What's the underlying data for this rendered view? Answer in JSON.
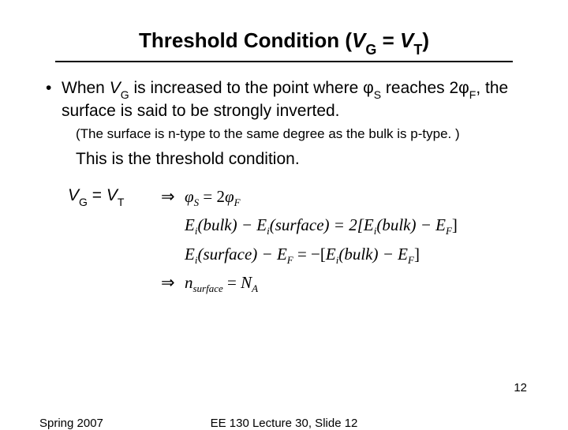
{
  "title": {
    "pre": "Threshold Condition (",
    "v": "V",
    "gsub": "G",
    "mid": " = ",
    "v2": "V",
    "tsub": "T",
    "post": ")"
  },
  "bullet": {
    "dot": "•",
    "t1": "When ",
    "vg_v": "V",
    "vg_sub": "G",
    "t2": " is increased to the point where ",
    "phi": "φ",
    "s_sub": "S",
    "t3": " reaches 2",
    "phi2": "φ",
    "f_sub": "F",
    "t4": ", the surface is said to be strongly inverted."
  },
  "note": "(The surface is n-type to the same degree as the bulk is p-type. )",
  "line2": "This is the threshold condition.",
  "eqlabel": {
    "vg": "V",
    "gsub": "G",
    "eq": " = ",
    "vt": "V",
    "tsub": "T"
  },
  "eq": {
    "r1": {
      "arrow": "⇒",
      "phi": "φ",
      "s": "S",
      "eq": " = 2",
      "phi2": "φ",
      "f": "F"
    },
    "r2": {
      "e1": "E",
      "i1": "i",
      "b1": "(bulk) − ",
      "e2": "E",
      "i2": "i",
      "s1": "(surface) = 2[",
      "e3": "E",
      "i3": "i",
      "b2": "(bulk) − ",
      "e4": "E",
      "f": "F",
      "end": "]"
    },
    "r3": {
      "e1": "E",
      "i1": "i",
      "s1": "(surface) − ",
      "e2": "E",
      "f1": "F",
      "eq": " = −[",
      "e3": "E",
      "i2": "i",
      "b1": "(bulk) − ",
      "e4": "E",
      "f2": "F",
      "end": "]"
    },
    "r4": {
      "arrow": "⇒",
      "n": "n",
      "surf": "surface",
      "eq": " = ",
      "N": "N",
      "a": "A"
    }
  },
  "footer": {
    "left": "Spring 2007",
    "center": "EE 130 Lecture 30, Slide 12"
  },
  "pagenum": "12",
  "style": {
    "bg": "#ffffff",
    "fg": "#000000",
    "title_fontsize": 26,
    "body_fontsize": 21,
    "note_fontsize": 17,
    "footer_fontsize": 15
  }
}
